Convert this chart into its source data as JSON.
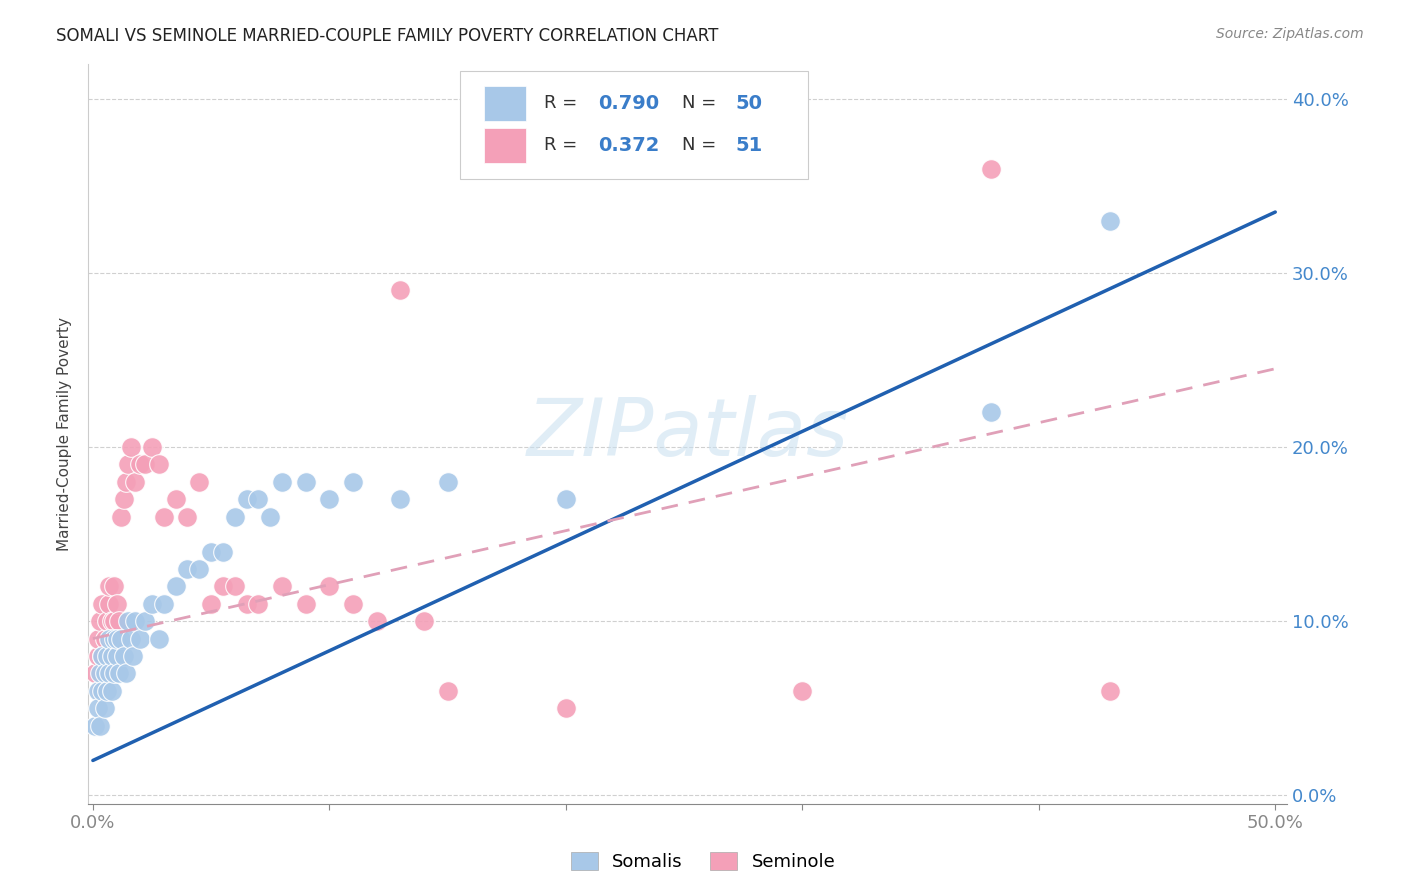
{
  "title": "SOMALI VS SEMINOLE MARRIED-COUPLE FAMILY POVERTY CORRELATION CHART",
  "source": "Source: ZipAtlas.com",
  "ylabel": "Married-Couple Family Poverty",
  "ylim": [
    -0.005,
    0.42
  ],
  "xlim": [
    -0.002,
    0.505
  ],
  "somali_R": 0.79,
  "somali_N": 50,
  "seminole_R": 0.372,
  "seminole_N": 51,
  "somali_color": "#a8c8e8",
  "seminole_color": "#f4a0b8",
  "somali_line_color": "#2060b0",
  "seminole_line_color": "#e0a0b8",
  "watermark_color": "#c8dff0",
  "somali_x": [
    0.001,
    0.002,
    0.002,
    0.003,
    0.003,
    0.004,
    0.004,
    0.005,
    0.005,
    0.006,
    0.006,
    0.007,
    0.007,
    0.008,
    0.008,
    0.009,
    0.009,
    0.01,
    0.01,
    0.011,
    0.012,
    0.013,
    0.014,
    0.015,
    0.016,
    0.017,
    0.018,
    0.02,
    0.022,
    0.025,
    0.028,
    0.03,
    0.035,
    0.04,
    0.045,
    0.05,
    0.055,
    0.06,
    0.065,
    0.07,
    0.075,
    0.08,
    0.09,
    0.1,
    0.11,
    0.13,
    0.15,
    0.2,
    0.38,
    0.43
  ],
  "somali_y": [
    0.04,
    0.06,
    0.05,
    0.07,
    0.04,
    0.06,
    0.08,
    0.07,
    0.05,
    0.08,
    0.06,
    0.09,
    0.07,
    0.08,
    0.06,
    0.09,
    0.07,
    0.08,
    0.09,
    0.07,
    0.09,
    0.08,
    0.07,
    0.1,
    0.09,
    0.08,
    0.1,
    0.09,
    0.1,
    0.11,
    0.09,
    0.11,
    0.12,
    0.13,
    0.13,
    0.14,
    0.14,
    0.16,
    0.17,
    0.17,
    0.16,
    0.18,
    0.18,
    0.17,
    0.18,
    0.17,
    0.18,
    0.17,
    0.22,
    0.33
  ],
  "seminole_x": [
    0.001,
    0.002,
    0.002,
    0.003,
    0.003,
    0.004,
    0.004,
    0.005,
    0.005,
    0.006,
    0.006,
    0.007,
    0.007,
    0.008,
    0.008,
    0.009,
    0.009,
    0.01,
    0.01,
    0.011,
    0.012,
    0.013,
    0.014,
    0.015,
    0.016,
    0.018,
    0.02,
    0.022,
    0.025,
    0.028,
    0.03,
    0.035,
    0.04,
    0.045,
    0.05,
    0.055,
    0.06,
    0.065,
    0.07,
    0.08,
    0.09,
    0.1,
    0.11,
    0.12,
    0.13,
    0.14,
    0.15,
    0.2,
    0.3,
    0.38,
    0.43
  ],
  "seminole_y": [
    0.07,
    0.08,
    0.09,
    0.1,
    0.06,
    0.11,
    0.08,
    0.09,
    0.07,
    0.1,
    0.08,
    0.11,
    0.12,
    0.1,
    0.09,
    0.12,
    0.1,
    0.11,
    0.09,
    0.1,
    0.16,
    0.17,
    0.18,
    0.19,
    0.2,
    0.18,
    0.19,
    0.19,
    0.2,
    0.19,
    0.16,
    0.17,
    0.16,
    0.18,
    0.11,
    0.12,
    0.12,
    0.11,
    0.11,
    0.12,
    0.11,
    0.12,
    0.11,
    0.1,
    0.29,
    0.1,
    0.06,
    0.05,
    0.06,
    0.36,
    0.06
  ],
  "ytick_vals": [
    0.0,
    0.1,
    0.2,
    0.3,
    0.4
  ],
  "xtick_vals": [
    0.0,
    0.1,
    0.2,
    0.3,
    0.4,
    0.5
  ]
}
